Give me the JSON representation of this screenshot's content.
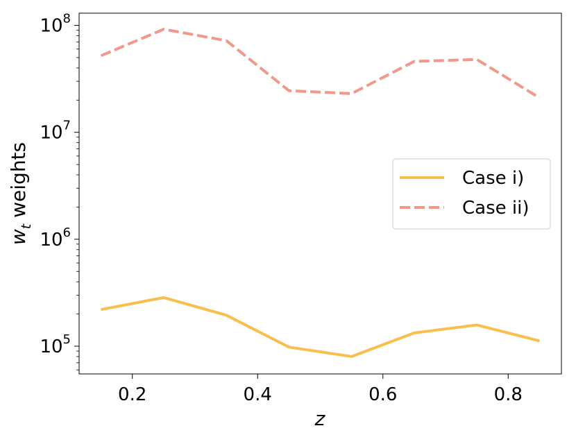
{
  "chart_data": {
    "type": "line",
    "xlabel": "z",
    "ylabel_main": "w",
    "ylabel_sub": "t",
    "ylabel_rest": " weights",
    "yscale": "log",
    "xlim": [
      0.115,
      0.885
    ],
    "ylim": [
      55000,
      130000000
    ],
    "grid": false,
    "legend_position": "center-right",
    "x_ticks": [
      {
        "value": 0.2,
        "label": "0.2"
      },
      {
        "value": 0.4,
        "label": "0.4"
      },
      {
        "value": 0.6,
        "label": "0.6"
      },
      {
        "value": 0.8,
        "label": "0.8"
      }
    ],
    "y_ticks": [
      {
        "value": 100000,
        "base": "10",
        "exp": "5"
      },
      {
        "value": 1000000,
        "base": "10",
        "exp": "6"
      },
      {
        "value": 10000000,
        "base": "10",
        "exp": "7"
      },
      {
        "value": 100000000,
        "base": "10",
        "exp": "8"
      }
    ],
    "x": [
      0.15,
      0.25,
      0.35,
      0.45,
      0.55,
      0.65,
      0.75,
      0.85
    ],
    "series": [
      {
        "name": "Case i)",
        "color": "#f9be4b",
        "dash": "solid",
        "values": [
          220000,
          285000,
          195000,
          98000,
          80000,
          133000,
          158000,
          112000
        ]
      },
      {
        "name": "Case ii)",
        "color": "#f0998a",
        "dash": "dashed",
        "values": [
          52000000,
          92000000,
          72000000,
          24500000,
          23000000,
          46000000,
          48000000,
          21000000
        ]
      }
    ]
  }
}
